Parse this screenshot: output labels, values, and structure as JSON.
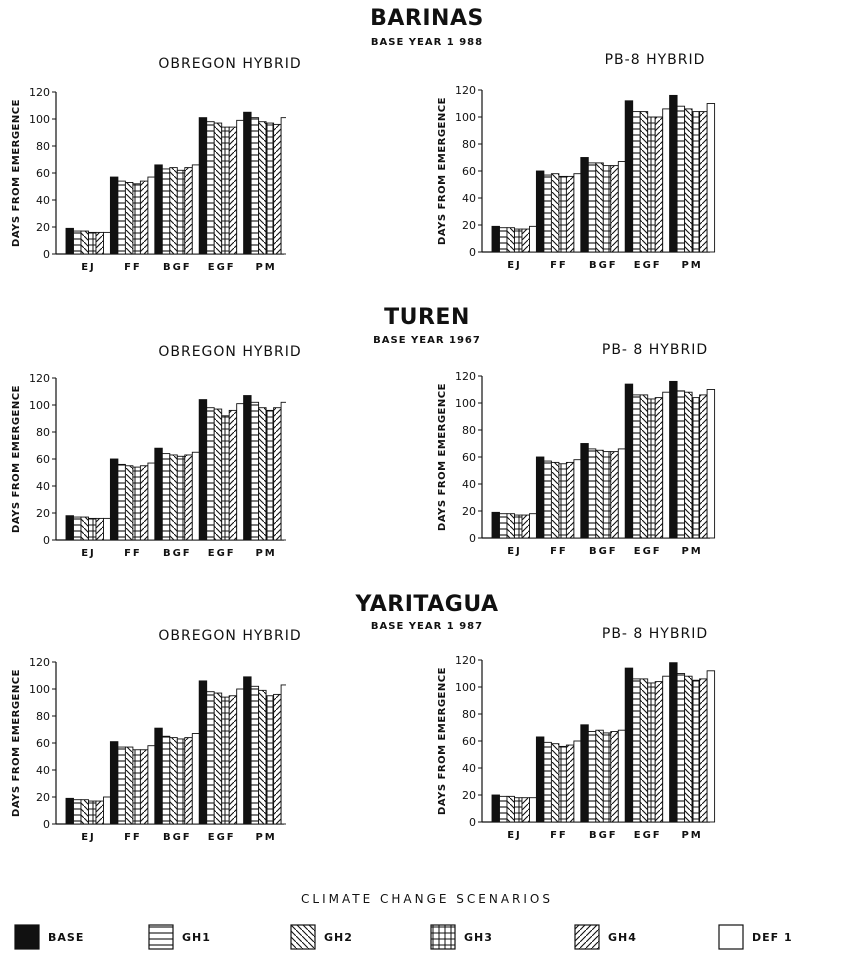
{
  "sites": [
    {
      "title": "BARINAS",
      "base_year": "BASE YEAR 1 988"
    },
    {
      "title": "TUREN",
      "base_year": "BASE YEAR 1967"
    },
    {
      "title": "YARITAGUA",
      "base_year": "BASE YEAR 1 987"
    }
  ],
  "legend": {
    "title": "CLIMATE CHANGE SCENARIOS",
    "items": [
      {
        "label": "BASE",
        "pattern": "solid"
      },
      {
        "label": "GH1",
        "pattern": "hlines"
      },
      {
        "label": "GH2",
        "pattern": "diag-back"
      },
      {
        "label": "GH3",
        "pattern": "grid"
      },
      {
        "label": "GH4",
        "pattern": "diag-fwd"
      },
      {
        "label": "DEF 1",
        "pattern": "empty"
      }
    ]
  },
  "chart_data": [
    {
      "type": "bar",
      "title": "OBREGON HYBRID",
      "ylabel": "DAYS FROM EMERGENCE",
      "ylim": [
        0,
        120
      ],
      "yticks": [
        0,
        20,
        40,
        60,
        80,
        100,
        120
      ],
      "categories": [
        "EJ",
        "FF",
        "BGF",
        "EGF",
        "PM"
      ],
      "series": [
        {
          "name": "BASE",
          "values": [
            19,
            57,
            66,
            101,
            105
          ]
        },
        {
          "name": "GH1",
          "values": [
            17,
            54,
            63,
            98,
            101
          ]
        },
        {
          "name": "GH2",
          "values": [
            17,
            53,
            64,
            97,
            98
          ]
        },
        {
          "name": "GH3",
          "values": [
            16,
            52,
            62,
            94,
            97
          ]
        },
        {
          "name": "GH4",
          "values": [
            16,
            54,
            64,
            94,
            96
          ]
        },
        {
          "name": "DEF 1",
          "values": [
            16,
            57,
            66,
            99,
            101
          ]
        }
      ]
    },
    {
      "type": "bar",
      "title": "PB-8 HYBRID",
      "ylabel": "DAYS FROM EMERGENCE",
      "ylim": [
        0,
        120
      ],
      "yticks": [
        0,
        20,
        40,
        60,
        80,
        100,
        120
      ],
      "categories": [
        "EJ",
        "FF",
        "BGF",
        "EGF",
        "PM"
      ],
      "series": [
        {
          "name": "BASE",
          "values": [
            19,
            60,
            70,
            112,
            116
          ]
        },
        {
          "name": "GH1",
          "values": [
            18,
            57,
            66,
            104,
            108
          ]
        },
        {
          "name": "GH2",
          "values": [
            18,
            58,
            66,
            104,
            106
          ]
        },
        {
          "name": "GH3",
          "values": [
            17,
            56,
            64,
            100,
            104
          ]
        },
        {
          "name": "GH4",
          "values": [
            17,
            56,
            64,
            100,
            104
          ]
        },
        {
          "name": "DEF 1",
          "values": [
            19,
            58,
            67,
            106,
            110
          ]
        }
      ]
    },
    {
      "type": "bar",
      "title": "OBREGON HYBRID",
      "ylabel": "DAYS FROM EMERGENCE",
      "ylim": [
        0,
        120
      ],
      "yticks": [
        0,
        20,
        40,
        60,
        80,
        100,
        120
      ],
      "categories": [
        "EJ",
        "FF",
        "BGF",
        "EGF",
        "PM"
      ],
      "series": [
        {
          "name": "BASE",
          "values": [
            18,
            60,
            68,
            104,
            107
          ]
        },
        {
          "name": "GH1",
          "values": [
            17,
            56,
            64,
            98,
            102
          ]
        },
        {
          "name": "GH2",
          "values": [
            17,
            55,
            63,
            97,
            98
          ]
        },
        {
          "name": "GH3",
          "values": [
            16,
            54,
            62,
            92,
            96
          ]
        },
        {
          "name": "GH4",
          "values": [
            16,
            55,
            63,
            96,
            98
          ]
        },
        {
          "name": "DEF 1",
          "values": [
            16,
            57,
            65,
            101,
            102
          ]
        }
      ]
    },
    {
      "type": "bar",
      "title": "PB- 8 HYBRID",
      "ylabel": "DAYS FROM EMERGENCE",
      "ylim": [
        0,
        120
      ],
      "yticks": [
        0,
        20,
        40,
        60,
        80,
        100,
        120
      ],
      "categories": [
        "EJ",
        "FF",
        "BGF",
        "EGF",
        "PM"
      ],
      "series": [
        {
          "name": "BASE",
          "values": [
            19,
            60,
            70,
            114,
            116
          ]
        },
        {
          "name": "GH1",
          "values": [
            18,
            57,
            66,
            106,
            109
          ]
        },
        {
          "name": "GH2",
          "values": [
            18,
            56,
            65,
            106,
            108
          ]
        },
        {
          "name": "GH3",
          "values": [
            17,
            55,
            64,
            103,
            104
          ]
        },
        {
          "name": "GH4",
          "values": [
            17,
            56,
            64,
            104,
            106
          ]
        },
        {
          "name": "DEF 1",
          "values": [
            18,
            58,
            66,
            108,
            110
          ]
        }
      ]
    },
    {
      "type": "bar",
      "title": "OBREGON HYBRID",
      "ylabel": "DAYS FROM EMERGENCE",
      "ylim": [
        0,
        120
      ],
      "yticks": [
        0,
        20,
        40,
        60,
        80,
        100,
        120
      ],
      "categories": [
        "EJ",
        "FF",
        "BGF",
        "EGF",
        "PM"
      ],
      "series": [
        {
          "name": "BASE",
          "values": [
            19,
            61,
            71,
            106,
            109
          ]
        },
        {
          "name": "GH1",
          "values": [
            18,
            57,
            65,
            98,
            102
          ]
        },
        {
          "name": "GH2",
          "values": [
            18,
            57,
            64,
            97,
            99
          ]
        },
        {
          "name": "GH3",
          "values": [
            17,
            55,
            63,
            94,
            95
          ]
        },
        {
          "name": "GH4",
          "values": [
            17,
            55,
            64,
            95,
            96
          ]
        },
        {
          "name": "DEF 1",
          "values": [
            20,
            58,
            67,
            100,
            103
          ]
        }
      ]
    },
    {
      "type": "bar",
      "title": "PB- 8 HYBRID",
      "ylabel": "DAYS FROM EMERGENCE",
      "ylim": [
        0,
        120
      ],
      "yticks": [
        0,
        20,
        40,
        60,
        80,
        100,
        120
      ],
      "categories": [
        "EJ",
        "FF",
        "BGF",
        "EGF",
        "PM"
      ],
      "series": [
        {
          "name": "BASE",
          "values": [
            20,
            63,
            72,
            114,
            118
          ]
        },
        {
          "name": "GH1",
          "values": [
            19,
            59,
            67,
            106,
            110
          ]
        },
        {
          "name": "GH2",
          "values": [
            19,
            58,
            68,
            106,
            108
          ]
        },
        {
          "name": "GH3",
          "values": [
            18,
            56,
            66,
            103,
            105
          ]
        },
        {
          "name": "GH4",
          "values": [
            18,
            57,
            67,
            104,
            106
          ]
        },
        {
          "name": "DEF 1",
          "values": [
            18,
            60,
            68,
            108,
            112
          ]
        }
      ]
    }
  ]
}
